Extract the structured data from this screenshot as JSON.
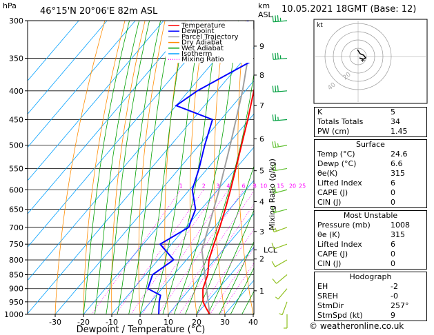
{
  "header": {
    "pressure_unit": "hPa",
    "location": "46°15'N  20°06'E  82m  ASL",
    "height_unit": "km",
    "height_unit_sub": "ASL",
    "datetime": "10.05.2021  18GMT  (Base: 12)"
  },
  "legend": {
    "items": [
      {
        "label": "Temperature",
        "color": "#ff0000"
      },
      {
        "label": "Dewpoint",
        "color": "#0000ff"
      },
      {
        "label": "Parcel Trajectory",
        "color": "#a0a0a0"
      },
      {
        "label": "Dry Adiabat",
        "color": "#ff8c00"
      },
      {
        "label": "Wet Adiabat",
        "color": "#00a000"
      },
      {
        "label": "Isotherm",
        "color": "#00a0ff"
      },
      {
        "label": "Mixing Ratio",
        "color": "#ff00ff"
      }
    ]
  },
  "chart_data": {
    "type": "skew-t",
    "xlabel": "Dewpoint / Temperature (°C)",
    "ylabel_right": "Mixing Ratio (g/kg)",
    "pressure_levels": [
      300,
      350,
      400,
      450,
      500,
      550,
      600,
      650,
      700,
      750,
      800,
      850,
      900,
      950,
      1000
    ],
    "temperature_ticks": [
      -30,
      -20,
      -10,
      0,
      10,
      20,
      30,
      40
    ],
    "height_ticks": [
      {
        "label": "9",
        "p": 333
      },
      {
        "label": "8",
        "p": 375
      },
      {
        "label": "7",
        "p": 425
      },
      {
        "label": "6",
        "p": 487
      },
      {
        "label": "5",
        "p": 555
      },
      {
        "label": "4",
        "p": 630
      },
      {
        "label": "3",
        "p": 712
      },
      {
        "label": "LCL",
        "p": 768
      },
      {
        "label": "2",
        "p": 797
      },
      {
        "label": "1",
        "p": 908
      }
    ],
    "mixing_ratio_labels": [
      "1",
      "2",
      "3",
      "4",
      "6",
      "8",
      "10",
      "15",
      "20",
      "25"
    ],
    "mixing_ratio_values": [
      1,
      2,
      3,
      4,
      6,
      8,
      10,
      15,
      20,
      25
    ],
    "temperature_profile": [
      {
        "p": 1000,
        "t": 24.6
      },
      {
        "p": 975,
        "t": 21.5
      },
      {
        "p": 950,
        "t": 18.5
      },
      {
        "p": 925,
        "t": 16.5
      },
      {
        "p": 900,
        "t": 14.5
      },
      {
        "p": 850,
        "t": 12.0
      },
      {
        "p": 800,
        "t": 8.0
      },
      {
        "p": 750,
        "t": 5.0
      },
      {
        "p": 700,
        "t": 2.0
      },
      {
        "p": 650,
        "t": -1.5
      },
      {
        "p": 600,
        "t": -5.5
      },
      {
        "p": 550,
        "t": -10.0
      },
      {
        "p": 500,
        "t": -15.0
      },
      {
        "p": 450,
        "t": -20.5
      },
      {
        "p": 400,
        "t": -27.0
      },
      {
        "p": 350,
        "t": -34.5
      },
      {
        "p": 300,
        "t": -43.0
      }
    ],
    "dewpoint_profile": [
      {
        "p": 1000,
        "t": 6.6
      },
      {
        "p": 950,
        "t": 3.0
      },
      {
        "p": 925,
        "t": 1.5
      },
      {
        "p": 900,
        "t": -5.0
      },
      {
        "p": 850,
        "t": -7.5
      },
      {
        "p": 800,
        "t": -4.5
      },
      {
        "p": 750,
        "t": -14.0
      },
      {
        "p": 700,
        "t": -9.0
      },
      {
        "p": 650,
        "t": -12.0
      },
      {
        "p": 600,
        "t": -19.0
      },
      {
        "p": 550,
        "t": -23.0
      },
      {
        "p": 500,
        "t": -28.0
      },
      {
        "p": 450,
        "t": -33.0
      },
      {
        "p": 425,
        "t": -50.0
      },
      {
        "p": 400,
        "t": -47.0
      },
      {
        "p": 355,
        "t": -37.0
      },
      {
        "p": 345,
        "t": -47.0
      },
      {
        "p": 330,
        "t": -55.0
      },
      {
        "p": 315,
        "t": -52.0
      },
      {
        "p": 300,
        "t": -50.0
      }
    ],
    "parcel_profile": [
      {
        "p": 1000,
        "t": 24.6
      },
      {
        "p": 768,
        "t": 2.5
      },
      {
        "p": 700,
        "t": -2.0
      },
      {
        "p": 600,
        "t": -9.5
      },
      {
        "p": 500,
        "t": -19.0
      },
      {
        "p": 400,
        "t": -31.0
      },
      {
        "p": 300,
        "t": -48.0
      }
    ],
    "wind_barbs": [
      {
        "p": 1000,
        "dir": 180,
        "spd": 5
      },
      {
        "p": 950,
        "dir": 200,
        "spd": 5
      },
      {
        "p": 900,
        "dir": 220,
        "spd": 5
      },
      {
        "p": 850,
        "dir": 230,
        "spd": 10
      },
      {
        "p": 800,
        "dir": 240,
        "spd": 10
      },
      {
        "p": 750,
        "dir": 250,
        "spd": 10
      },
      {
        "p": 700,
        "dir": 250,
        "spd": 15
      },
      {
        "p": 650,
        "dir": 255,
        "spd": 15
      },
      {
        "p": 600,
        "dir": 255,
        "spd": 20
      },
      {
        "p": 550,
        "dir": 260,
        "spd": 20
      },
      {
        "p": 500,
        "dir": 260,
        "spd": 25
      },
      {
        "p": 450,
        "dir": 265,
        "spd": 25
      },
      {
        "p": 400,
        "dir": 265,
        "spd": 30
      },
      {
        "p": 350,
        "dir": 265,
        "spd": 35
      },
      {
        "p": 300,
        "dir": 265,
        "spd": 35
      }
    ]
  },
  "hodograph": {
    "unit": "kt",
    "ring_labels": [
      "20",
      "40"
    ]
  },
  "indices": [
    {
      "label": "K",
      "value": "5"
    },
    {
      "label": "Totals Totals",
      "value": "34"
    },
    {
      "label": "PW (cm)",
      "value": "1.45"
    }
  ],
  "surface": {
    "title": "Surface",
    "rows": [
      {
        "label": "Temp (°C)",
        "value": "24.6"
      },
      {
        "label": "Dewp (°C)",
        "value": "6.6"
      },
      {
        "label": "θe(K)",
        "value": "315"
      },
      {
        "label": "Lifted Index",
        "value": "6"
      },
      {
        "label": "CAPE (J)",
        "value": "0"
      },
      {
        "label": "CIN (J)",
        "value": "0"
      }
    ]
  },
  "most_unstable": {
    "title": "Most Unstable",
    "rows": [
      {
        "label": "Pressure (mb)",
        "value": "1008"
      },
      {
        "label": "θe (K)",
        "value": "315"
      },
      {
        "label": "Lifted Index",
        "value": "6"
      },
      {
        "label": "CAPE (J)",
        "value": "0"
      },
      {
        "label": "CIN (J)",
        "value": "0"
      }
    ]
  },
  "hodograph_params": {
    "title": "Hodograph",
    "rows": [
      {
        "label": "EH",
        "value": "-2"
      },
      {
        "label": "SREH",
        "value": "-0"
      },
      {
        "label": "StmDir",
        "value": "257°"
      },
      {
        "label": "StmSpd (kt)",
        "value": "9"
      }
    ]
  },
  "copyright": "© weatheronline.co.uk"
}
